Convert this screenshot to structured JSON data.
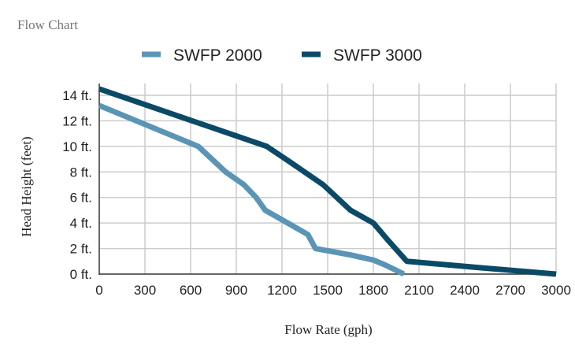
{
  "chart_data": {
    "type": "line",
    "title": "Flow Chart",
    "xlabel": "Flow Rate (gph)",
    "ylabel": "Head Height (feet)",
    "xlim": [
      0,
      3000
    ],
    "ylim": [
      0,
      14
    ],
    "x_ticks": [
      "0",
      "300",
      "600",
      "900",
      "1200",
      "1500",
      "1800",
      "2100",
      "2400",
      "2700",
      "3000"
    ],
    "y_ticks": [
      "0 ft.",
      "2 ft.",
      "4 ft.",
      "6 ft.",
      "8 ft.",
      "10 ft.",
      "12 ft.",
      "14 ft."
    ],
    "grid": true,
    "legend_position": "top",
    "series": [
      {
        "name": "SWFP 2000",
        "color": "#5b95b5",
        "points": [
          [
            0,
            13.2
          ],
          [
            650,
            10
          ],
          [
            830,
            8
          ],
          [
            950,
            7
          ],
          [
            1030,
            6
          ],
          [
            1090,
            5
          ],
          [
            1370,
            3.1
          ],
          [
            1420,
            2
          ],
          [
            1650,
            1.5
          ],
          [
            1800,
            1.1
          ],
          [
            1880,
            0.7
          ],
          [
            2000,
            0
          ]
        ]
      },
      {
        "name": "SWFP 3000",
        "color": "#0b4a67",
        "points": [
          [
            0,
            14.5
          ],
          [
            1100,
            10
          ],
          [
            1250,
            8.8
          ],
          [
            1470,
            7
          ],
          [
            1650,
            5
          ],
          [
            1800,
            4
          ],
          [
            1900,
            2.6
          ],
          [
            2020,
            1
          ],
          [
            2500,
            0.5
          ],
          [
            3000,
            0
          ]
        ]
      }
    ]
  }
}
